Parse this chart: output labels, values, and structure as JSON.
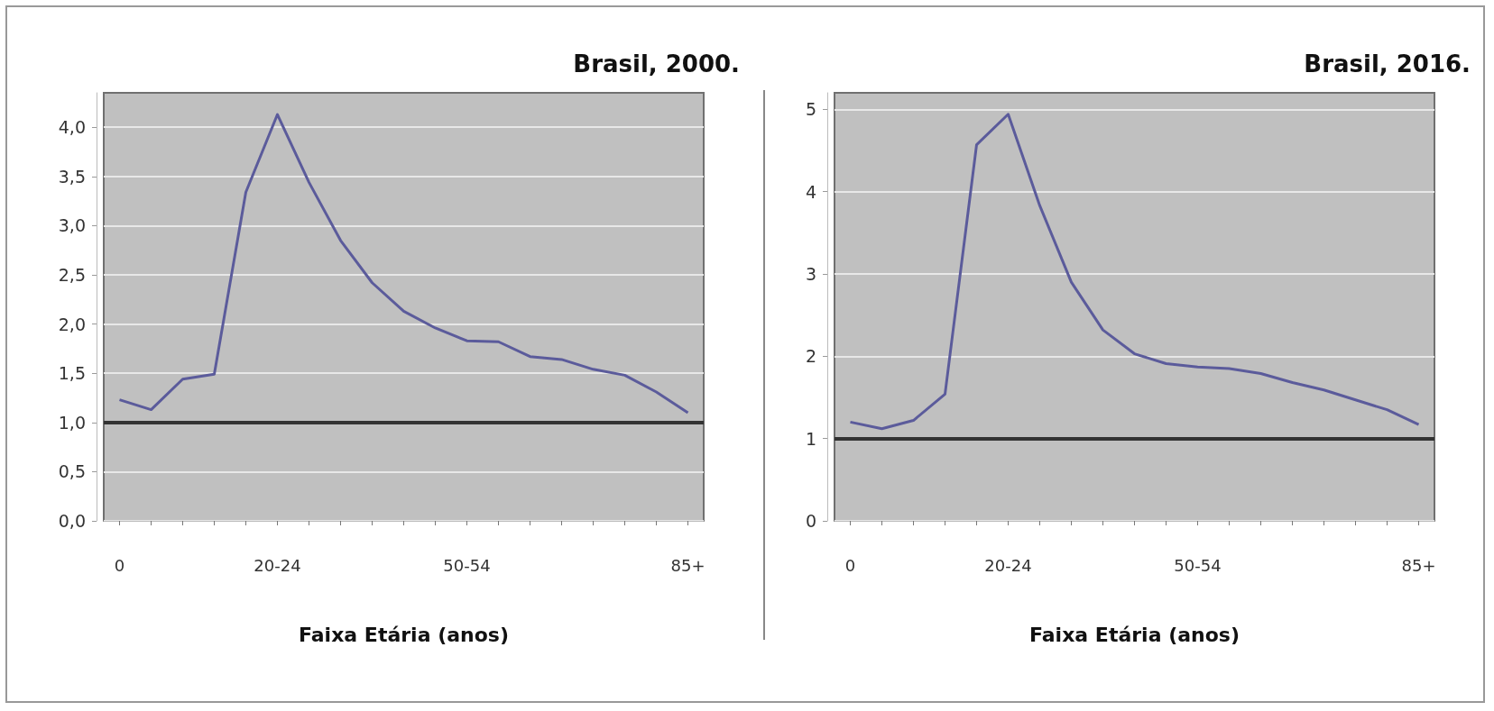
{
  "chart_data": [
    {
      "type": "line",
      "title": "Brasil, 2000.",
      "xlabel": "Faixa Etária (anos)",
      "categories": [
        "0",
        null,
        null,
        null,
        null,
        "20-24",
        null,
        null,
        null,
        null,
        null,
        "50-54",
        null,
        null,
        null,
        null,
        null,
        null,
        "85+"
      ],
      "series": [
        {
          "color": "#5b5b9b",
          "values": [
            1.23,
            1.13,
            1.44,
            1.49,
            3.34,
            4.13,
            3.44,
            2.85,
            2.42,
            2.13,
            1.96,
            1.83,
            1.82,
            1.67,
            1.64,
            1.54,
            1.48,
            1.31,
            1.1
          ]
        }
      ],
      "ylim": [
        0,
        4.35
      ],
      "yticks": [
        {
          "value": 0,
          "label": "0,0"
        },
        {
          "value": 0.5,
          "label": "0,5"
        },
        {
          "value": 1,
          "label": "1,0"
        },
        {
          "value": 1.5,
          "label": "1,5"
        },
        {
          "value": 2,
          "label": "2,0"
        },
        {
          "value": 2.5,
          "label": "2,5"
        },
        {
          "value": 3,
          "label": "3,0"
        },
        {
          "value": 3.5,
          "label": "3,5"
        },
        {
          "value": 4,
          "label": "4,0"
        }
      ],
      "ref_lines": [
        {
          "axis": "y",
          "value": 1,
          "color": "#333333"
        }
      ],
      "grid": "y",
      "marker": "none",
      "line_style": "solid"
    },
    {
      "type": "line",
      "title": "Brasil, 2016.",
      "xlabel": "Faixa Etária (anos)",
      "categories": [
        "0",
        null,
        null,
        null,
        null,
        "20-24",
        null,
        null,
        null,
        null,
        null,
        "50-54",
        null,
        null,
        null,
        null,
        null,
        null,
        "85+"
      ],
      "series": [
        {
          "color": "#5b5b9b",
          "values": [
            1.2,
            1.12,
            1.22,
            1.54,
            4.57,
            4.94,
            3.83,
            2.9,
            2.32,
            2.03,
            1.91,
            1.87,
            1.85,
            1.79,
            1.68,
            1.59,
            1.47,
            1.35,
            1.17
          ]
        }
      ],
      "ylim": [
        0,
        5.2
      ],
      "yticks": [
        0,
        1,
        2,
        3,
        4,
        5
      ],
      "ref_lines": [
        {
          "axis": "y",
          "value": 1,
          "color": "#333333"
        }
      ],
      "grid": "y",
      "marker": "none",
      "line_style": "solid"
    }
  ]
}
